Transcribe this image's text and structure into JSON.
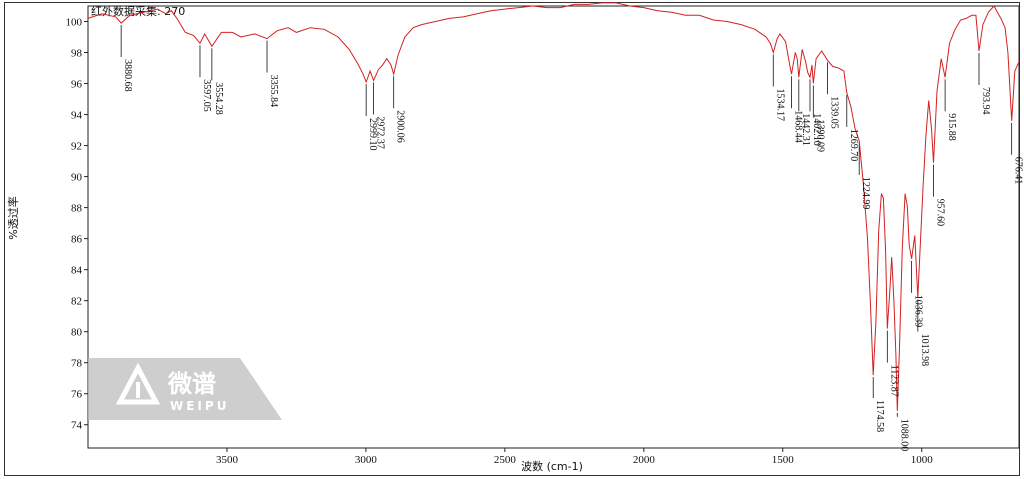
{
  "header_text": "红外数据采集: 270",
  "watermark": {
    "brand_cn": "微谱",
    "brand_en": "WEIPU"
  },
  "chart_data": {
    "type": "line",
    "title": "",
    "xlabel": "波数 (cm-1)",
    "ylabel": "%透过率",
    "xlim": [
      4000,
      650
    ],
    "ylim": [
      72.5,
      101
    ],
    "x_reversed": true,
    "x_ticks": [
      3500,
      3000,
      2500,
      2000,
      1500,
      1000
    ],
    "y_ticks": [
      74,
      76,
      78,
      80,
      82,
      84,
      86,
      88,
      90,
      92,
      94,
      96,
      98,
      100
    ],
    "line_color": "#d42020",
    "grid": false,
    "series": [
      {
        "values": [
          [
            4000,
            100.2
          ],
          [
            3950,
            100.5
          ],
          [
            3900,
            100.3
          ],
          [
            3880.68,
            99.9
          ],
          [
            3850,
            100.4
          ],
          [
            3800,
            100.6
          ],
          [
            3750,
            100.8
          ],
          [
            3720,
            100.5
          ],
          [
            3700,
            100.7
          ],
          [
            3680,
            100.2
          ],
          [
            3650,
            99.3
          ],
          [
            3620,
            99.1
          ],
          [
            3597.05,
            98.6
          ],
          [
            3580,
            99.2
          ],
          [
            3554.28,
            98.4
          ],
          [
            3520,
            99.3
          ],
          [
            3480,
            99.3
          ],
          [
            3450,
            99.0
          ],
          [
            3400,
            99.2
          ],
          [
            3355.84,
            98.9
          ],
          [
            3320,
            99.4
          ],
          [
            3280,
            99.6
          ],
          [
            3250,
            99.3
          ],
          [
            3200,
            99.6
          ],
          [
            3150,
            99.5
          ],
          [
            3100,
            99.0
          ],
          [
            3060,
            98.2
          ],
          [
            3030,
            97.3
          ],
          [
            3010,
            96.6
          ],
          [
            2999.1,
            96.1
          ],
          [
            2985,
            96.8
          ],
          [
            2972.37,
            96.2
          ],
          [
            2955,
            96.9
          ],
          [
            2940,
            97.2
          ],
          [
            2925,
            97.6
          ],
          [
            2910,
            97.2
          ],
          [
            2900.06,
            96.6
          ],
          [
            2885,
            97.8
          ],
          [
            2860,
            99.0
          ],
          [
            2830,
            99.6
          ],
          [
            2800,
            99.8
          ],
          [
            2750,
            100.0
          ],
          [
            2700,
            100.2
          ],
          [
            2650,
            100.3
          ],
          [
            2600,
            100.5
          ],
          [
            2550,
            100.7
          ],
          [
            2500,
            100.8
          ],
          [
            2450,
            100.9
          ],
          [
            2400,
            101.0
          ],
          [
            2350,
            100.9
          ],
          [
            2300,
            100.9
          ],
          [
            2250,
            101.1
          ],
          [
            2200,
            101.1
          ],
          [
            2150,
            101.2
          ],
          [
            2100,
            101.2
          ],
          [
            2050,
            101.0
          ],
          [
            2000,
            100.9
          ],
          [
            1950,
            100.7
          ],
          [
            1900,
            100.6
          ],
          [
            1850,
            100.4
          ],
          [
            1800,
            100.4
          ],
          [
            1750,
            100.1
          ],
          [
            1700,
            100.0
          ],
          [
            1650,
            99.8
          ],
          [
            1600,
            99.5
          ],
          [
            1560,
            99.0
          ],
          [
            1545,
            98.6
          ],
          [
            1534.17,
            98.0
          ],
          [
            1520,
            98.9
          ],
          [
            1510,
            99.2
          ],
          [
            1490,
            98.7
          ],
          [
            1475,
            97.2
          ],
          [
            1468.44,
            96.6
          ],
          [
            1455,
            98.0
          ],
          [
            1448,
            97.6
          ],
          [
            1442.31,
            96.4
          ],
          [
            1430,
            98.2
          ],
          [
            1418,
            97.4
          ],
          [
            1410,
            96.7
          ],
          [
            1402.1,
            96.4
          ],
          [
            1395,
            97.2
          ],
          [
            1390.09,
            96.0
          ],
          [
            1380,
            97.6
          ],
          [
            1360,
            98.1
          ],
          [
            1339.05,
            97.5
          ],
          [
            1320,
            97.1
          ],
          [
            1300,
            97.0
          ],
          [
            1280,
            96.8
          ],
          [
            1269.7,
            95.4
          ],
          [
            1255,
            94.5
          ],
          [
            1240,
            93.1
          ],
          [
            1224.99,
            92.3
          ],
          [
            1210,
            89.5
          ],
          [
            1195,
            86.0
          ],
          [
            1185,
            82.0
          ],
          [
            1174.58,
            77.2
          ],
          [
            1165,
            80.6
          ],
          [
            1155,
            86.5
          ],
          [
            1145,
            88.9
          ],
          [
            1138,
            88.6
          ],
          [
            1130,
            85.2
          ],
          [
            1123.87,
            80.2
          ],
          [
            1115,
            82.6
          ],
          [
            1108,
            84.8
          ],
          [
            1100,
            82.0
          ],
          [
            1093,
            78.5
          ],
          [
            1088.0,
            74.9
          ],
          [
            1080,
            79.0
          ],
          [
            1070,
            85.4
          ],
          [
            1060,
            88.9
          ],
          [
            1052,
            88.1
          ],
          [
            1045,
            85.6
          ],
          [
            1036.39,
            84.7
          ],
          [
            1025,
            86.2
          ],
          [
            1013.98,
            82.2
          ],
          [
            1005,
            85.6
          ],
          [
            995,
            89.4
          ],
          [
            985,
            92.6
          ],
          [
            975,
            94.9
          ],
          [
            965,
            93.1
          ],
          [
            957.6,
            90.9
          ],
          [
            945,
            95.5
          ],
          [
            930,
            97.6
          ],
          [
            915.88,
            96.4
          ],
          [
            900,
            98.6
          ],
          [
            880,
            99.5
          ],
          [
            860,
            100.1
          ],
          [
            840,
            100.2
          ],
          [
            820,
            100.4
          ],
          [
            805,
            100.4
          ],
          [
            793.94,
            98.1
          ],
          [
            780,
            99.8
          ],
          [
            760,
            100.6
          ],
          [
            740,
            101.0
          ],
          [
            725,
            100.5
          ],
          [
            715,
            100.2
          ],
          [
            700,
            99.6
          ],
          [
            690,
            98.0
          ],
          [
            676.41,
            93.6
          ],
          [
            665,
            96.8
          ],
          [
            650,
            97.4
          ]
        ]
      }
    ],
    "annotations": [
      {
        "label": "3880.68",
        "x": 3880.68
      },
      {
        "label": "3597.05",
        "x": 3597.05
      },
      {
        "label": "3554.28",
        "x": 3554.28
      },
      {
        "label": "3355.84",
        "x": 3355.84
      },
      {
        "label": "2999.10",
        "x": 2999.1
      },
      {
        "label": "2972.37",
        "x": 2972.37
      },
      {
        "label": "2900.06",
        "x": 2900.06
      },
      {
        "label": "1534.17",
        "x": 1534.17
      },
      {
        "label": "1468.44",
        "x": 1468.44
      },
      {
        "label": "1442.31",
        "x": 1442.31
      },
      {
        "label": "1402.10",
        "x": 1402.1
      },
      {
        "label": "1390.09",
        "x": 1390.09
      },
      {
        "label": "1339.05",
        "x": 1339.05
      },
      {
        "label": "1269.70",
        "x": 1269.7
      },
      {
        "label": "1224.99",
        "x": 1224.99
      },
      {
        "label": "1174.58",
        "x": 1174.58
      },
      {
        "label": "1123.87",
        "x": 1123.87
      },
      {
        "label": "1088.00",
        "x": 1088.0
      },
      {
        "label": "1036.39",
        "x": 1036.39
      },
      {
        "label": "1013.98",
        "x": 1013.98
      },
      {
        "label": "957.60",
        "x": 957.6
      },
      {
        "label": "915.88",
        "x": 915.88
      },
      {
        "label": "793.94",
        "x": 793.94
      },
      {
        "label": "676.41",
        "x": 676.41
      }
    ]
  }
}
